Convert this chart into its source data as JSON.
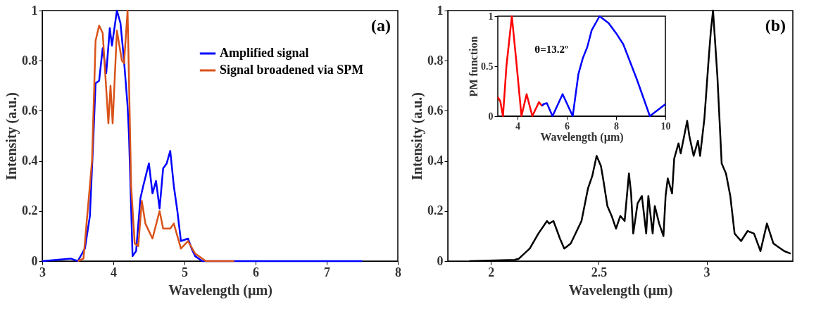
{
  "chart_data": [
    {
      "type": "line",
      "xlabel": "Wavelength (µm)",
      "ylabel": "Intensity (a.u.)",
      "xlim": [
        3,
        8
      ],
      "xticks": [
        3,
        4,
        5,
        6,
        7,
        8
      ],
      "ylim": [
        0,
        1
      ],
      "yticks": [
        0,
        0.2,
        0.4,
        0.6,
        0.8,
        1
      ],
      "grid": false,
      "legend": "top right",
      "marker": "none",
      "line_style": "solid",
      "annotations": [
        "(a)"
      ],
      "series": [
        {
          "name": "Amplified signal",
          "color": "#0000ff",
          "x": [
            3.0,
            3.4,
            3.5,
            3.6,
            3.67,
            3.72,
            3.75,
            3.8,
            3.85,
            3.9,
            3.95,
            3.98,
            4.05,
            4.1,
            4.15,
            4.2,
            4.22,
            4.27,
            4.32,
            4.38,
            4.42,
            4.5,
            4.55,
            4.6,
            4.65,
            4.7,
            4.75,
            4.8,
            4.85,
            4.9,
            4.95,
            5.05,
            5.1,
            5.15,
            5.25,
            7.5
          ],
          "values": [
            0,
            0.01,
            0,
            0.05,
            0.18,
            0.5,
            0.71,
            0.72,
            0.85,
            0.75,
            0.93,
            0.86,
            1.0,
            0.95,
            0.8,
            0.62,
            0.5,
            0.02,
            0.04,
            0.25,
            0.3,
            0.39,
            0.27,
            0.32,
            0.21,
            0.37,
            0.39,
            0.44,
            0.3,
            0.2,
            0.08,
            0.09,
            0.05,
            0.02,
            0,
            0
          ]
        },
        {
          "name": "Signal broadened via SPM",
          "color": "#d95319",
          "x": [
            3.5,
            3.58,
            3.7,
            3.75,
            3.8,
            3.85,
            3.93,
            3.96,
            3.99,
            4.05,
            4.12,
            4.15,
            4.2,
            4.25,
            4.3,
            4.35,
            4.4,
            4.45,
            4.55,
            4.65,
            4.7,
            4.8,
            4.85,
            4.95,
            5.05,
            5.15,
            5.3,
            5.7
          ],
          "values": [
            0,
            0.01,
            0.4,
            0.88,
            0.94,
            0.91,
            0.55,
            0.7,
            0.55,
            0.92,
            0.8,
            0.79,
            1.0,
            0.3,
            0.07,
            0.06,
            0.24,
            0.15,
            0.09,
            0.2,
            0.13,
            0.13,
            0.15,
            0.05,
            0.08,
            0.03,
            0,
            0
          ]
        }
      ]
    },
    {
      "type": "line",
      "xlabel": "Wavelength (µm)",
      "ylabel": "Intensity (a.u.)",
      "xlim": [
        1.8,
        3.4
      ],
      "xticks": [
        2,
        2.5,
        3
      ],
      "ylim": [
        0,
        1
      ],
      "yticks": [
        0,
        0.2,
        0.4,
        0.6,
        0.8,
        1
      ],
      "grid": false,
      "marker": "none",
      "line_style": "solid",
      "annotations": [
        "(b)"
      ],
      "series": [
        {
          "color": "#000000",
          "x": [
            1.9,
            2.11,
            2.13,
            2.18,
            2.22,
            2.26,
            2.27,
            2.29,
            2.32,
            2.34,
            2.37,
            2.42,
            2.45,
            2.47,
            2.49,
            2.51,
            2.52,
            2.54,
            2.56,
            2.58,
            2.6,
            2.62,
            2.64,
            2.65,
            2.66,
            2.68,
            2.7,
            2.72,
            2.73,
            2.75,
            2.76,
            2.78,
            2.8,
            2.81,
            2.82,
            2.84,
            2.85,
            2.87,
            2.88,
            2.91,
            2.92,
            2.94,
            2.96,
            2.97,
            2.99,
            3.01,
            3.02,
            3.03,
            3.05,
            3.07,
            3.09,
            3.11,
            3.13,
            3.16,
            3.19,
            3.22,
            3.25,
            3.28,
            3.31,
            3.36,
            3.39
          ],
          "values": [
            0,
            0.005,
            0.01,
            0.05,
            0.11,
            0.16,
            0.15,
            0.16,
            0.09,
            0.05,
            0.07,
            0.16,
            0.29,
            0.34,
            0.42,
            0.38,
            0.33,
            0.22,
            0.18,
            0.13,
            0.18,
            0.16,
            0.35,
            0.27,
            0.11,
            0.23,
            0.26,
            0.11,
            0.26,
            0.11,
            0.22,
            0.15,
            0.1,
            0.26,
            0.33,
            0.27,
            0.41,
            0.47,
            0.43,
            0.56,
            0.5,
            0.42,
            0.48,
            0.42,
            0.57,
            0.81,
            0.92,
            1.0,
            0.74,
            0.39,
            0.35,
            0.26,
            0.11,
            0.08,
            0.12,
            0.11,
            0.04,
            0.15,
            0.07,
            0.04,
            0.03
          ]
        }
      ]
    },
    {
      "type": "line",
      "xlabel": "Wavelength (µm)",
      "ylabel": "PM function",
      "xlim": [
        3.2,
        10
      ],
      "xticks": [
        4,
        6,
        8,
        10
      ],
      "ylim": [
        0,
        1
      ],
      "yticks": [
        0,
        0.5,
        1
      ],
      "grid": false,
      "marker": "none",
      "line_style": "solid",
      "annotations": [
        "θ=13.2º"
      ],
      "series": [
        {
          "color": "#ff0000",
          "x": [
            3.2,
            3.3,
            3.41,
            3.55,
            3.77,
            3.95,
            4.16,
            4.37,
            4.6,
            4.87,
            5.0
          ],
          "values": [
            0.19,
            0.15,
            0,
            0.5,
            1.0,
            0.55,
            0,
            0.22,
            0,
            0.14,
            0.1
          ]
        },
        {
          "color": "#0000ff",
          "x": [
            5.0,
            5.05,
            5.19,
            5.42,
            5.83,
            6.24,
            6.47,
            6.65,
            6.83,
            7.01,
            7.33,
            7.7,
            8.0,
            8.29,
            8.84,
            9.37,
            10.0
          ],
          "values": [
            0.1,
            0.12,
            0.13,
            0,
            0.22,
            0,
            0.42,
            0.58,
            0.69,
            0.86,
            1.0,
            0.93,
            0.83,
            0.72,
            0.37,
            0,
            0.12
          ]
        }
      ]
    }
  ]
}
